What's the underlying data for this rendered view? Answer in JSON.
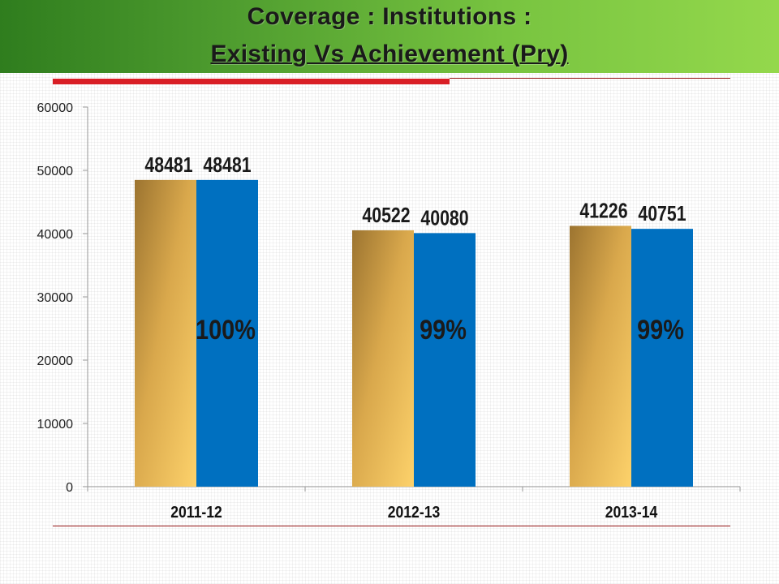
{
  "slide": {
    "title_line_1": "Coverage : Institutions :",
    "title_line_2": "Existing  Vs Achievement (Pry)"
  },
  "colors": {
    "banner_start": "#2f7d1e",
    "banner_end": "#94d84c",
    "accent_red": "#d91f26",
    "existing_bar_light": "#fdd26b",
    "existing_bar_dark": "#a47b30",
    "achievement_bar": "#0070c0"
  },
  "chart_data": {
    "type": "bar",
    "title": "",
    "xlabel": "",
    "ylabel": "",
    "categories": [
      "2011-12",
      "2012-13",
      "2013-14"
    ],
    "series": [
      {
        "values": [
          48481,
          40522,
          41226
        ]
      },
      {
        "values": [
          48481,
          40080,
          40751
        ]
      }
    ],
    "percent_labels": [
      "100%",
      "99%",
      "99%"
    ],
    "ylim": [
      0,
      60000
    ],
    "yticks": [
      "0",
      "10000",
      "20000",
      "30000",
      "40000",
      "50000",
      "60000"
    ],
    "grid": false,
    "legend": "none"
  }
}
